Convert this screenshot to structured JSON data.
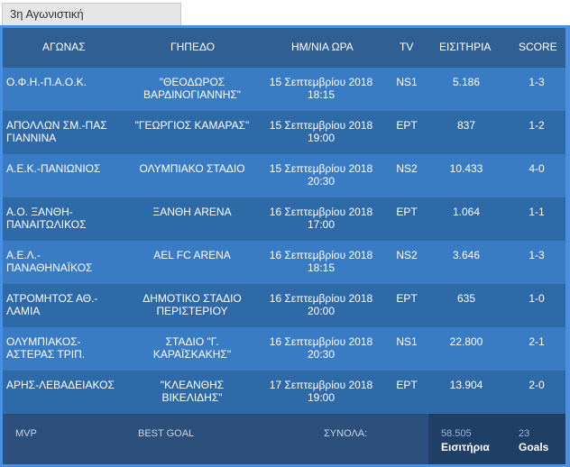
{
  "tab": {
    "label": "3η Αγωνιστική"
  },
  "columns": {
    "match": "ΑΓΩΝΑΣ",
    "venue": "ΓΗΠΕΔΟ",
    "datetime": "ΗΜ/ΝΙΑ ΩΡΑ",
    "tv": "TV",
    "tickets": "ΕΙΣΙΤΗΡΙΑ",
    "score": "SCORE"
  },
  "rows": [
    {
      "match1": "Ο.Φ.Η.-Π.Α.Ο.Κ.",
      "match2": "",
      "venue1": "\"ΘΕΟΔΩΡΟΣ",
      "venue2": "ΒΑΡΔΙΝΟΓΙΑΝΝΗΣ\"",
      "date": "15 Σεπτεμβρίου 2018",
      "time": "18:15",
      "tv": "NS1",
      "tickets": "5.186",
      "score": "1-3"
    },
    {
      "match1": "ΑΠΟΛΛΩΝ ΣΜ.-ΠΑΣ",
      "match2": "ΓΙΑΝΝΙΝΑ",
      "venue1": "\"ΓΕΩΡΓΙΟΣ ΚΑΜΑΡΑΣ\"",
      "venue2": "",
      "date": "15 Σεπτεμβρίου 2018",
      "time": "19:00",
      "tv": "ΕΡΤ",
      "tickets": "837",
      "score": "1-2"
    },
    {
      "match1": "Α.Ε.Κ.-ΠΑΝΙΩΝΙΟΣ",
      "match2": "",
      "venue1": "ΟΛΥΜΠΙΑΚΟ ΣΤΑΔΙΟ",
      "venue2": "",
      "date": "15 Σεπτεμβρίου 2018",
      "time": "20:30",
      "tv": "NS2",
      "tickets": "10.433",
      "score": "4-0"
    },
    {
      "match1": "Α.Ο. ΞΑΝΘΗ-",
      "match2": "ΠΑΝΑΙΤΩΛΙΚΟΣ",
      "venue1": "ΞΑΝΘΗ ARENA",
      "venue2": "",
      "date": "16 Σεπτεμβρίου 2018",
      "time": "17:00",
      "tv": "ΕΡΤ",
      "tickets": "1.064",
      "score": "1-1"
    },
    {
      "match1": "Α.Ε.Λ.-",
      "match2": "ΠΑΝΑΘΗΝΑΪΚΟΣ",
      "venue1": "AEL FC ARENA",
      "venue2": "",
      "date": "16 Σεπτεμβρίου 2018",
      "time": "18:15",
      "tv": "NS2",
      "tickets": "3.646",
      "score": "1-3"
    },
    {
      "match1": "ΑΤΡΟΜΗΤΟΣ ΑΘ.-",
      "match2": "ΛΑΜΙΑ",
      "venue1": "ΔΗΜΟΤΙΚΟ ΣΤΑΔΙΟ",
      "venue2": "ΠΕΡΙΣΤΕΡΙΟΥ",
      "date": "16 Σεπτεμβρίου 2018",
      "time": "20:00",
      "tv": "ΕΡΤ",
      "tickets": "635",
      "score": "1-0"
    },
    {
      "match1": "ΟΛΥΜΠΙΑΚΟΣ-",
      "match2": "ΑΣΤΕΡΑΣ ΤΡΙΠ.",
      "venue1": "ΣΤΑΔΙΟ \"Γ.",
      "venue2": "ΚΑΡΑΪΣΚΑΚΗΣ\"",
      "date": "16 Σεπτεμβρίου 2018",
      "time": "20:30",
      "tv": "NS1",
      "tickets": "22.800",
      "score": "2-1"
    },
    {
      "match1": "ΑΡΗΣ-ΛΕΒΑΔΕΙΑΚΟΣ",
      "match2": "",
      "venue1": "\"ΚΛΕΑΝΘΗΣ ΒΙΚΕΛΙΔΗΣ\"",
      "venue2": "",
      "date": "17 Σεπτεμβρίου 2018",
      "time": "19:00",
      "tv": "ΕΡΤ",
      "tickets": "13.904",
      "score": "2-0"
    }
  ],
  "footer": {
    "mvp_label": "MVP",
    "best_goal_label": "BEST GOAL",
    "totals_label": "ΣΥΝΟΛΑ:",
    "tickets_total": "58.505",
    "tickets_total_label": "Εισιτήρια",
    "goals_total": "23",
    "goals_total_label": "Goals"
  },
  "colors": {
    "panel_border": "#4a90e2",
    "header_bg": "#2f5f93",
    "row_odd": "#3a7cc4",
    "row_even": "#2f6aa8",
    "footer_bg": "#2c4f7c",
    "totals_bg": "#203f67"
  }
}
